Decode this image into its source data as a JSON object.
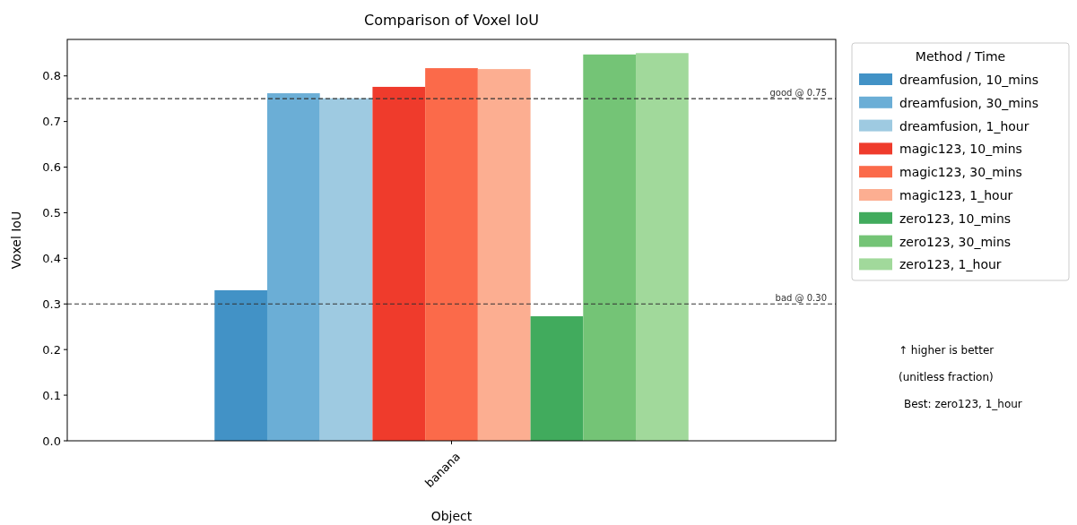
{
  "chart_data": {
    "type": "bar",
    "title": "Comparison of Voxel IoU",
    "xlabel": "Object",
    "ylabel": "Voxel IoU",
    "legend_title": "Method / Time",
    "categories": [
      "banana"
    ],
    "series": [
      {
        "name": "dreamfusion, 10_mins",
        "color": "#4292c6",
        "values": [
          0.33
        ]
      },
      {
        "name": "dreamfusion, 30_mins",
        "color": "#6baed6",
        "values": [
          0.762
        ]
      },
      {
        "name": "dreamfusion, 1_hour",
        "color": "#9ecae1",
        "values": [
          0.751
        ]
      },
      {
        "name": "magic123, 10_mins",
        "color": "#ef3b2c",
        "values": [
          0.776
        ]
      },
      {
        "name": "magic123, 30_mins",
        "color": "#fb6a4a",
        "values": [
          0.817
        ]
      },
      {
        "name": "magic123, 1_hour",
        "color": "#fcae91",
        "values": [
          0.815
        ]
      },
      {
        "name": "zero123, 10_mins",
        "color": "#41ab5d",
        "values": [
          0.273
        ]
      },
      {
        "name": "zero123, 30_mins",
        "color": "#74c476",
        "values": [
          0.847
        ]
      },
      {
        "name": "zero123, 1_hour",
        "color": "#a1d99b",
        "values": [
          0.85
        ]
      }
    ],
    "ylim": [
      0,
      0.88
    ],
    "yticks": [
      {
        "value": 0,
        "label": "0.0"
      },
      {
        "value": 0.1,
        "label": "0.1"
      },
      {
        "value": 0.2,
        "label": "0.2"
      },
      {
        "value": 0.3,
        "label": "0.3"
      },
      {
        "value": 0.4,
        "label": "0.4"
      },
      {
        "value": 0.5,
        "label": "0.5"
      },
      {
        "value": 0.6,
        "label": "0.6"
      },
      {
        "value": 0.7,
        "label": "0.7"
      },
      {
        "value": 0.8,
        "label": "0.8"
      }
    ],
    "ref_lines": [
      {
        "axis": "y",
        "value": 0.75,
        "label": "good @ 0.75",
        "color": "#333333",
        "line_style": "dashed"
      },
      {
        "axis": "y",
        "value": 0.3,
        "label": "bad @ 0.30",
        "color": "#333333",
        "line_style": "dashed"
      }
    ],
    "annotations": [
      "↑ higher is better",
      "(unitless fraction)",
      "Best: zero123, 1_hour"
    ],
    "legend": "right"
  }
}
